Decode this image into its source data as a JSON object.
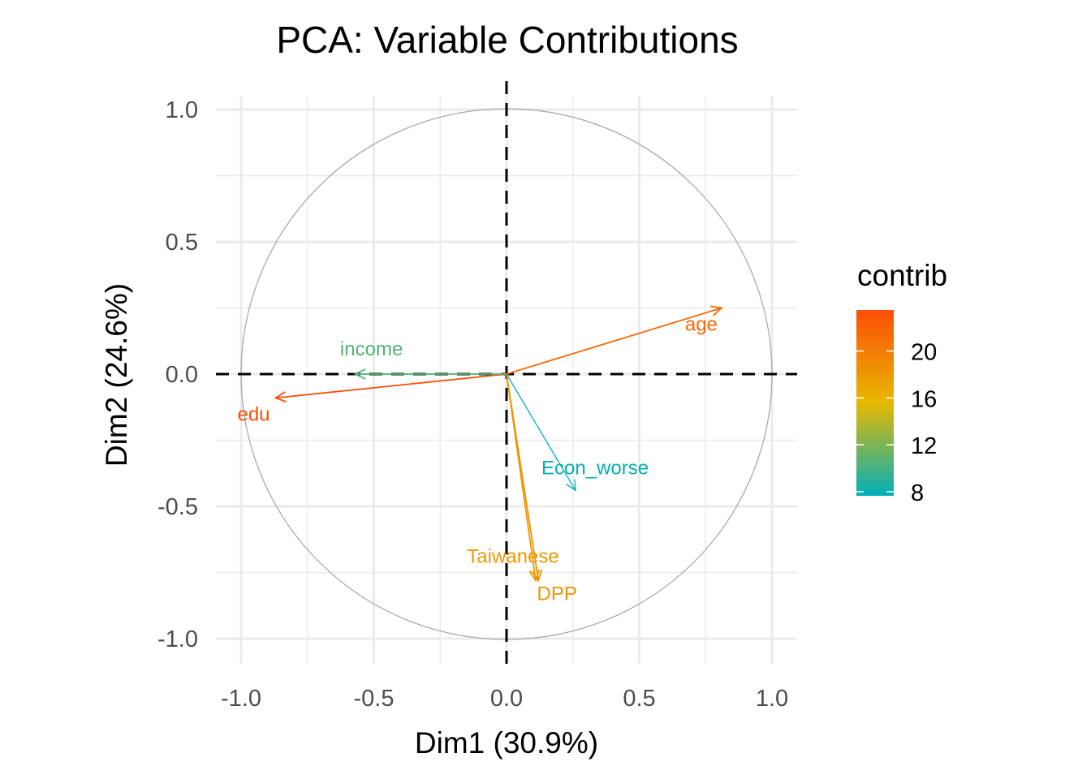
{
  "chart_data": {
    "type": "scatter",
    "subtype": "pca-variable-correlation-circle",
    "title": "PCA: Variable Contributions",
    "xlabel": "Dim1 (30.9%)",
    "ylabel": "Dim2 (24.6%)",
    "xlim": [
      -1.05,
      1.05
    ],
    "ylim": [
      -1.05,
      1.05
    ],
    "xticks": [
      -1.0,
      -0.5,
      0.0,
      0.5,
      1.0
    ],
    "yticks": [
      -1.0,
      -0.5,
      0.0,
      0.5,
      1.0
    ],
    "xtick_labels": [
      "-1.0",
      "-0.5",
      "0.0",
      "0.5",
      "1.0"
    ],
    "ytick_labels": [
      "-1.0",
      "-0.5",
      "0.0",
      "0.5",
      "1.0"
    ],
    "grid": true,
    "unit_circle": true,
    "reference_lines": {
      "x": 0,
      "y": 0,
      "style": "dashed"
    },
    "variables": [
      {
        "name": "age",
        "dim1": 0.81,
        "dim2": 0.25,
        "contrib": 21.5
      },
      {
        "name": "edu",
        "dim1": -0.87,
        "dim2": -0.09,
        "contrib": 23.4
      },
      {
        "name": "income",
        "dim1": -0.57,
        "dim2": 0.0,
        "contrib": 10.5
      },
      {
        "name": "Econ_worse",
        "dim1": 0.26,
        "dim2": -0.44,
        "contrib": 7.8
      },
      {
        "name": "Taiwanese",
        "dim1": 0.11,
        "dim2": -0.78,
        "contrib": 18.0
      },
      {
        "name": "DPP",
        "dim1": 0.12,
        "dim2": -0.78,
        "contrib": 18.3
      }
    ],
    "legend": {
      "title": "contrib",
      "position": "right",
      "type": "gradient",
      "range": [
        7.65,
        23.5
      ],
      "ticks": [
        8,
        12,
        16,
        20
      ],
      "tick_labels": [
        "8",
        "12",
        "16",
        "20"
      ],
      "gradient_colors": [
        "#00AFBB",
        "#E7B800",
        "#FC4E07"
      ]
    }
  }
}
